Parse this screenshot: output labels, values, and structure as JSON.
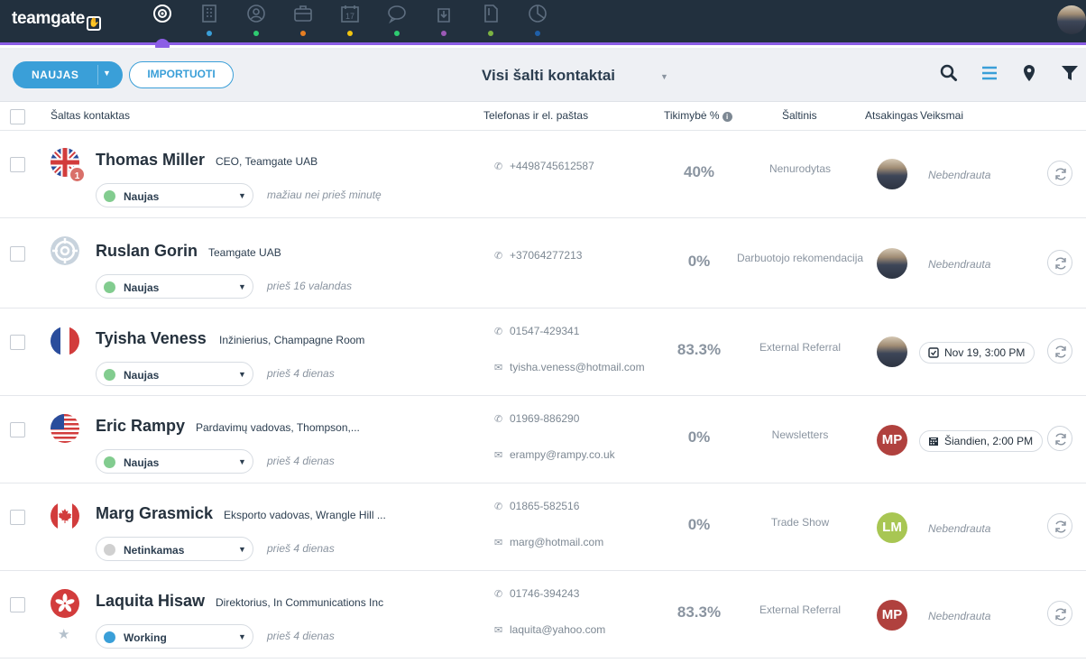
{
  "app": {
    "logo": "teamgate",
    "logo_icon": "hand-icon"
  },
  "nav": [
    {
      "icon": "target-icon",
      "dot": "#8c5ee6",
      "active": true
    },
    {
      "icon": "building-icon",
      "dot": "#3a9fd8"
    },
    {
      "icon": "person-icon",
      "dot": "#2ecc71"
    },
    {
      "icon": "briefcase-icon",
      "dot": "#e67e22"
    },
    {
      "icon": "calendar-icon",
      "dot": "#f1c40f",
      "text": "17"
    },
    {
      "icon": "chat-icon",
      "dot": "#2ecc71"
    },
    {
      "icon": "download-icon",
      "dot": "#9b59b6"
    },
    {
      "icon": "document-icon",
      "dot": "#7cb342"
    },
    {
      "icon": "pie-chart-icon",
      "dot": "#1f5fa8"
    }
  ],
  "toolbar": {
    "new_label": "NAUJAS",
    "import_label": "IMPORTUOTI",
    "view_label": "Visi šalti kontaktai"
  },
  "table": {
    "headers": {
      "contact": "Šaltas kontaktas",
      "phone_email": "Telefonas ir el. paštas",
      "probability": "Tikimybė %",
      "source": "Šaltinis",
      "owner": "Atsakingas",
      "actions": "Veiksmai"
    },
    "rows": [
      {
        "flag": "uk",
        "name": "Thomas Miller",
        "title": "CEO, Teamgate UAB",
        "status": "Naujas",
        "status_color": "#82cc8f",
        "time": "mažiau nei prieš minutę",
        "phone": "+4498745612587",
        "email": "",
        "probability": "40%",
        "source": "Nenurodytas",
        "owner": "photo",
        "action": "Nebendrauta",
        "badge": "1"
      },
      {
        "flag": "default",
        "name": "Ruslan Gorin",
        "title": "Teamgate UAB",
        "status": "Naujas",
        "status_color": "#82cc8f",
        "time": "prieš 16 valandas",
        "phone": "+37064277213",
        "email": "",
        "probability": "0%",
        "source": "Darbuotojo rekomendacija",
        "owner": "photo",
        "action": "Nebendrauta"
      },
      {
        "flag": "fr",
        "name": "Tyisha Veness",
        "title": "Inžinierius, Champagne Room",
        "status": "Naujas",
        "status_color": "#82cc8f",
        "time": "prieš 4 dienas",
        "phone": "01547-429341",
        "email": "tyisha.veness@hotmail.com",
        "probability": "83.3%",
        "source": "External Referral",
        "owner": "photo",
        "task": "Nov 19, 3:00 PM",
        "task_icon": "checkbox-icon"
      },
      {
        "flag": "us",
        "name": "Eric Rampy",
        "title": "Pardavimų vadovas, Thompson,...",
        "status": "Naujas",
        "status_color": "#82cc8f",
        "time": "prieš 4 dienas",
        "phone": "01969-886290",
        "email": "erampy@rampy.co.uk",
        "probability": "0%",
        "source": "Newsletters",
        "owner": "MP",
        "owner_color": "#b0413e",
        "task": "Šiandien, 2:00 PM",
        "task_icon": "calendar-icon"
      },
      {
        "flag": "ca",
        "name": "Marg Grasmick",
        "title": "Eksporto vadovas, Wrangle Hill ...",
        "status": "Netinkamas",
        "status_color": "#d0d0d0",
        "time": "prieš 4 dienas",
        "phone": "01865-582516",
        "email": "marg@hotmail.com",
        "probability": "0%",
        "source": "Trade Show",
        "owner": "LM",
        "owner_color": "#a8c653",
        "action": "Nebendrauta"
      },
      {
        "flag": "hk",
        "name": "Laquita Hisaw",
        "title": "Direktorius, In Communications Inc",
        "status": "Working",
        "status_color": "#3a9fd8",
        "time": "prieš 4 dienas",
        "phone": "01746-394243",
        "email": "laquita@yahoo.com",
        "probability": "83.3%",
        "source": "External Referral",
        "owner": "MP",
        "owner_color": "#b0413e",
        "action": "Nebendrauta",
        "star": true
      }
    ]
  }
}
